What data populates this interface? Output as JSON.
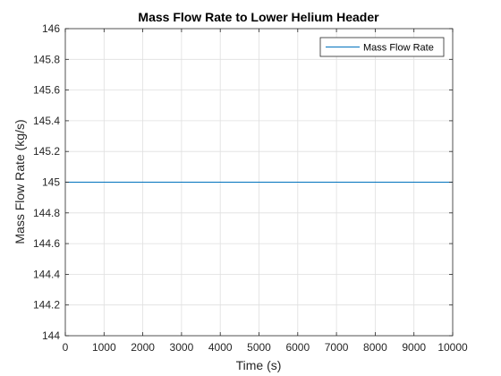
{
  "colors": {
    "series": "#0072BD",
    "grid": "#dfdfdf",
    "axis": "#262626",
    "background": "#ffffff"
  },
  "chart_data": {
    "type": "line",
    "title": "Mass Flow Rate to Lower Helium Header",
    "xlabel": "Time (s)",
    "ylabel": "Mass Flow Rate (kg/s)",
    "xlim": [
      0,
      10000
    ],
    "ylim": [
      144,
      146
    ],
    "xticks": [
      0,
      1000,
      2000,
      3000,
      4000,
      5000,
      6000,
      7000,
      8000,
      9000,
      10000
    ],
    "yticks": [
      144,
      144.2,
      144.4,
      144.6,
      144.8,
      145,
      145.2,
      145.4,
      145.6,
      145.8,
      146
    ],
    "grid": true,
    "legend_position": "top-right",
    "series": [
      {
        "name": "Mass Flow Rate",
        "x": [
          0,
          10000
        ],
        "y": [
          145,
          145
        ]
      }
    ]
  }
}
